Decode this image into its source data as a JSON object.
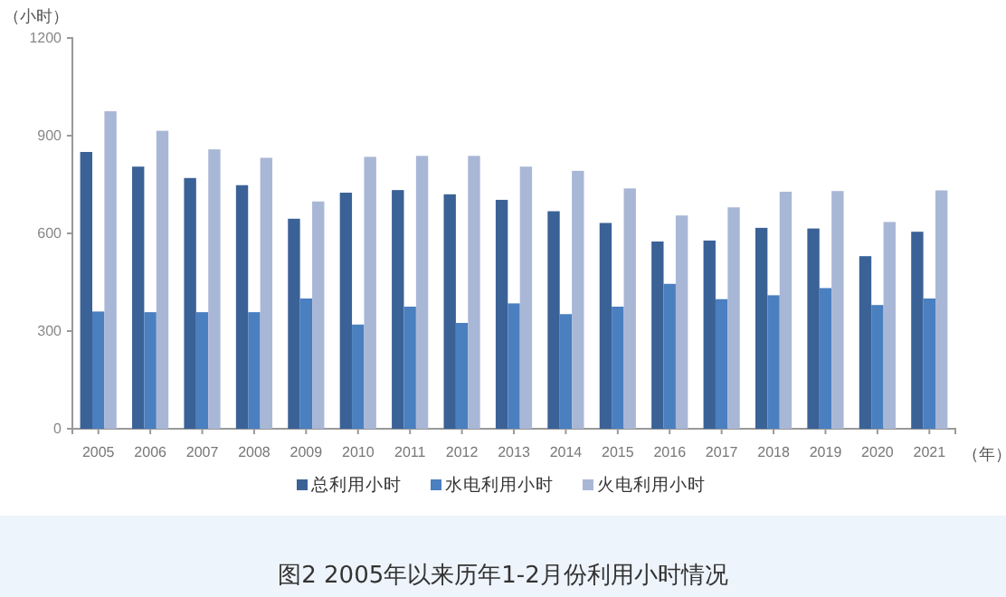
{
  "chart_data": {
    "type": "bar",
    "title": "图2 2005年以来历年1-2月份利用小时情况",
    "ylabel": "（小时）",
    "xlabel": "（年）",
    "categories": [
      "2005",
      "2006",
      "2007",
      "2008",
      "2009",
      "2010",
      "2011",
      "2012",
      "2013",
      "2014",
      "2015",
      "2016",
      "2017",
      "2018",
      "2019",
      "2020",
      "2021"
    ],
    "series": [
      {
        "name": "总利用小时",
        "color": "#3b6296",
        "values": [
          850,
          805,
          770,
          748,
          645,
          725,
          733,
          720,
          703,
          668,
          632,
          575,
          578,
          617,
          615,
          530,
          605
        ]
      },
      {
        "name": "水电利用小时",
        "color": "#4a7fc0",
        "values": [
          360,
          358,
          358,
          358,
          400,
          320,
          375,
          325,
          385,
          352,
          375,
          445,
          398,
          410,
          432,
          380,
          400
        ]
      },
      {
        "name": "火电利用小时",
        "color": "#a9b7d6",
        "values": [
          975,
          915,
          858,
          832,
          698,
          835,
          838,
          838,
          805,
          792,
          738,
          655,
          680,
          728,
          730,
          635,
          732
        ]
      }
    ],
    "ylim": [
      0,
      1200
    ],
    "yticks": [
      0,
      300,
      600,
      900,
      1200
    ],
    "grid": false,
    "legend": "bottom"
  }
}
